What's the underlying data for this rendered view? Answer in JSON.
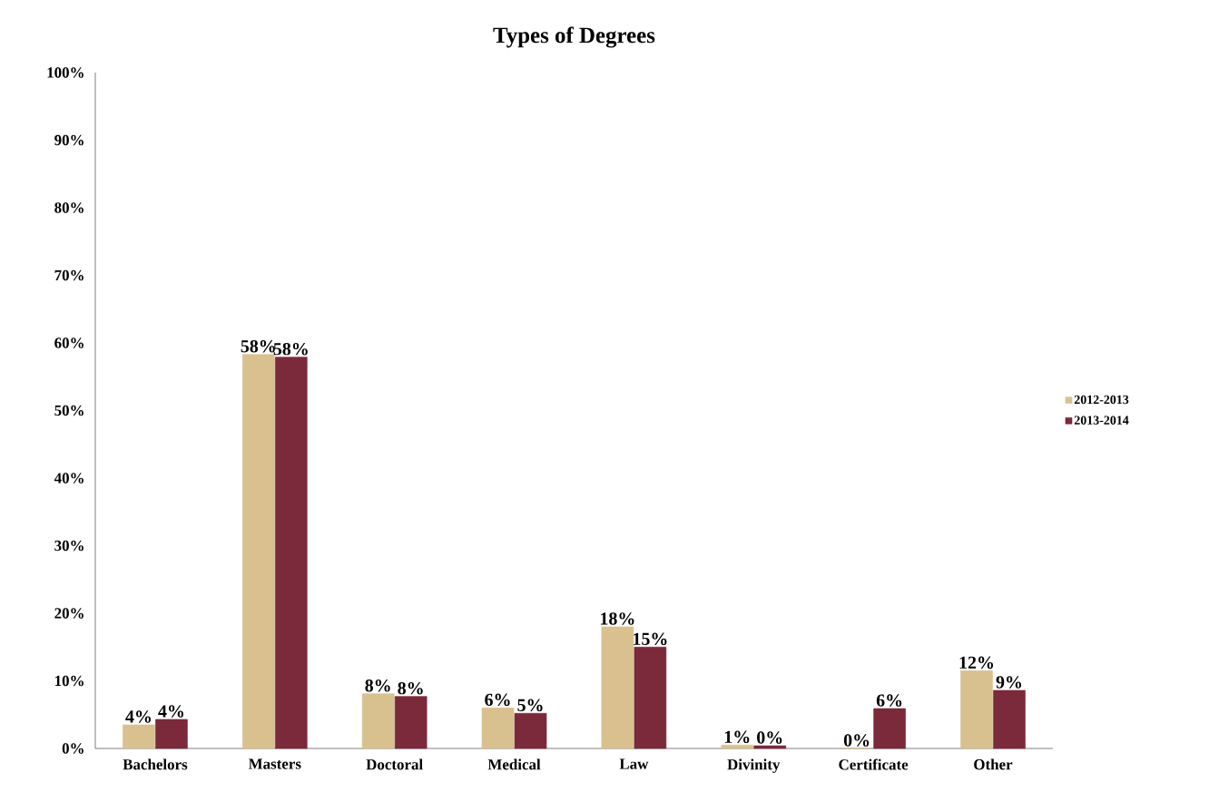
{
  "chart_data": {
    "type": "bar",
    "title": "Types of Degrees",
    "categories": [
      "Bachelors",
      "Masters",
      "Doctoral",
      "Medical",
      "Law",
      "Divinity",
      "Certificate",
      "Other"
    ],
    "series": [
      {
        "name": "2012-2013",
        "color": "#d9c18f",
        "values": [
          3.5,
          58.3,
          8.1,
          6.0,
          18.0,
          0.5,
          0,
          11.5
        ],
        "value_labels": [
          "4%",
          "58%",
          "8%",
          "6%",
          "18%",
          "1%",
          "0%",
          "12%"
        ]
      },
      {
        "name": "2013-2014",
        "color": "#7b2a3b",
        "values": [
          4.3,
          57.9,
          7.7,
          5.2,
          15.0,
          0.4,
          5.9,
          8.6
        ],
        "value_labels": [
          "4%",
          "58%",
          "8%",
          "5%",
          "15%",
          "0%",
          "6%",
          "9%"
        ]
      }
    ],
    "ylim": [
      0,
      100
    ],
    "yticks": [
      {
        "value": 0,
        "label": "0%"
      },
      {
        "value": 10,
        "label": "10%"
      },
      {
        "value": 20,
        "label": "20%"
      },
      {
        "value": 30,
        "label": "30%"
      },
      {
        "value": 40,
        "label": "40%"
      },
      {
        "value": 50,
        "label": "50%"
      },
      {
        "value": 60,
        "label": "60%"
      },
      {
        "value": 70,
        "label": "70%"
      },
      {
        "value": 80,
        "label": "80%"
      },
      {
        "value": 90,
        "label": "90%"
      },
      {
        "value": 100,
        "label": "100%"
      }
    ],
    "grid": false,
    "legend": "right"
  }
}
